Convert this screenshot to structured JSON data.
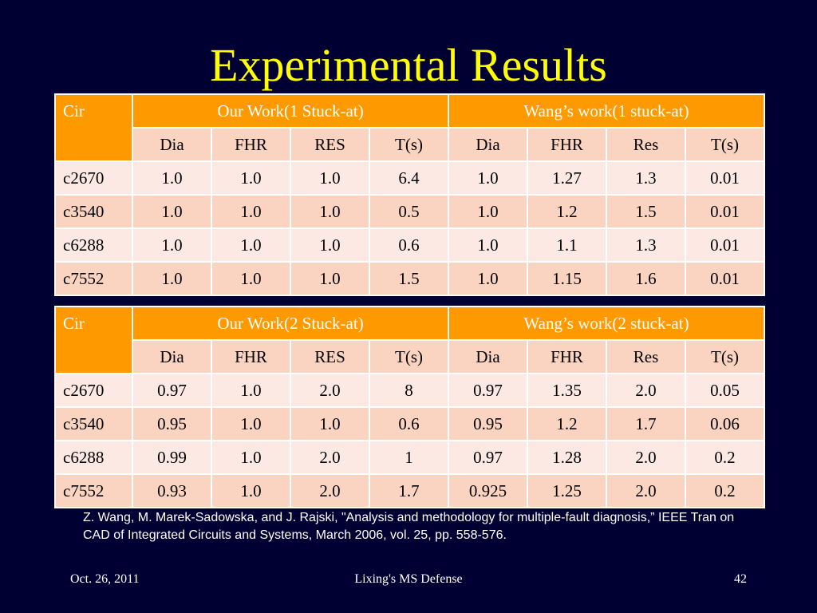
{
  "slide": {
    "title": "Experimental Results",
    "reference": "Z. Wang, M. Marek-Sadowska, and J. Rajski, \"Analysis and methodology for multiple-fault diagnosis,” IEEE Tran on CAD of Integrated Circuits and Systems, March 2006, vol. 25, pp. 558-576.",
    "footer_date": "Oct. 26, 2011",
    "footer_center": "Lixing's MS Defense",
    "page_number": "42"
  },
  "tables": [
    {
      "cir_label": "Cir",
      "group1": "Our Work(1 Stuck-at)",
      "group2": "Wang’s work(1 stuck-at)",
      "sub": [
        "Dia",
        "FHR",
        "RES",
        "T(s)",
        "Dia",
        "FHR",
        "Res",
        "T(s)"
      ],
      "rows": [
        [
          "c2670",
          "1.0",
          "1.0",
          "1.0",
          "6.4",
          "1.0",
          "1.27",
          "1.3",
          "0.01"
        ],
        [
          "c3540",
          "1.0",
          "1.0",
          "1.0",
          "0.5",
          "1.0",
          "1.2",
          "1.5",
          "0.01"
        ],
        [
          "c6288",
          "1.0",
          "1.0",
          "1.0",
          "0.6",
          "1.0",
          "1.1",
          "1.3",
          "0.01"
        ],
        [
          "c7552",
          "1.0",
          "1.0",
          "1.0",
          "1.5",
          "1.0",
          "1.15",
          "1.6",
          "0.01"
        ]
      ]
    },
    {
      "cir_label": "Cir",
      "group1": "Our Work(2 Stuck-at)",
      "group2": "Wang’s work(2 stuck-at)",
      "sub": [
        "Dia",
        "FHR",
        "RES",
        "T(s)",
        "Dia",
        "FHR",
        "Res",
        "T(s)"
      ],
      "rows": [
        [
          "c2670",
          "0.97",
          "1.0",
          "2.0",
          "8",
          "0.97",
          "1.35",
          "2.0",
          "0.05"
        ],
        [
          "c3540",
          "0.95",
          "1.0",
          "1.0",
          "0.6",
          "0.95",
          "1.2",
          "1.7",
          "0.06"
        ],
        [
          "c6288",
          "0.99",
          "1.0",
          "2.0",
          "1",
          "0.97",
          "1.28",
          "2.0",
          "0.2"
        ],
        [
          "c7552",
          "0.93",
          "1.0",
          "2.0",
          "1.7",
          "0.925",
          "1.25",
          "2.0",
          "0.2"
        ]
      ]
    }
  ],
  "colors": {
    "background": "#000033",
    "title": "#ffff00",
    "header": "#ff9900",
    "row_light": "#fde9e3",
    "row_dark": "#fbd3c1"
  }
}
